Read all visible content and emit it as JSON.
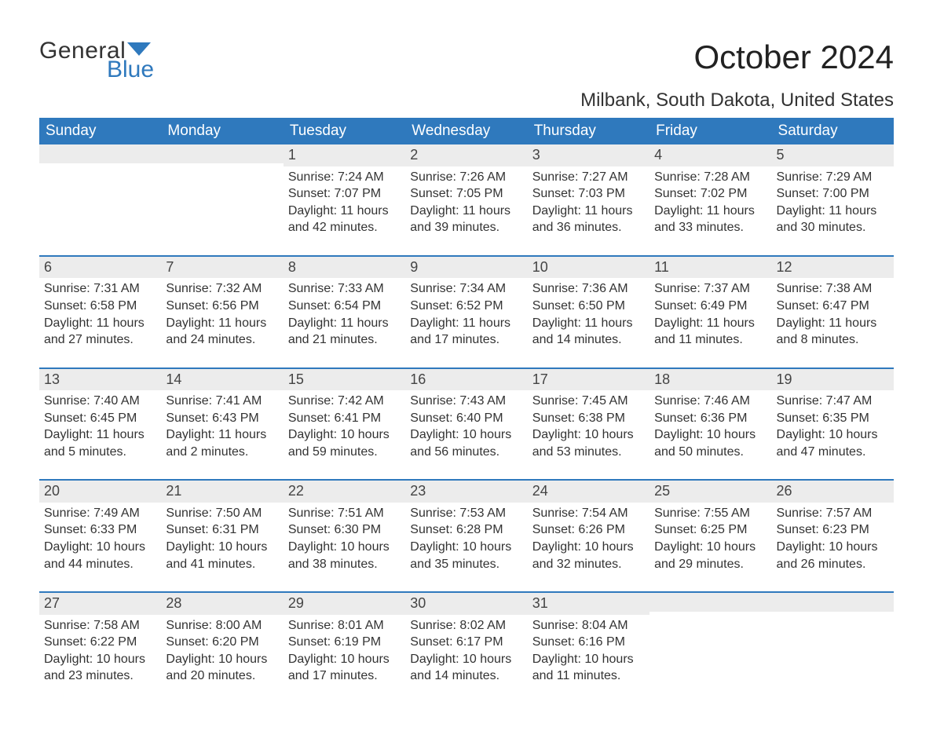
{
  "logo": {
    "word1": "General",
    "word2": "Blue"
  },
  "title": "October 2024",
  "location": "Milbank, South Dakota, United States",
  "theme": {
    "header_bg": "#2f79bd",
    "header_fg": "#ffffff",
    "row_sep": "#2f79bd",
    "daynum_bg": "#ececec",
    "text": "#333333",
    "logo_accent": "#2f79bd"
  },
  "weekdays": [
    "Sunday",
    "Monday",
    "Tuesday",
    "Wednesday",
    "Thursday",
    "Friday",
    "Saturday"
  ],
  "weeks": [
    [
      null,
      null,
      {
        "n": "1",
        "sunrise": "7:24 AM",
        "sunset": "7:07 PM",
        "daylight": "11 hours and 42 minutes."
      },
      {
        "n": "2",
        "sunrise": "7:26 AM",
        "sunset": "7:05 PM",
        "daylight": "11 hours and 39 minutes."
      },
      {
        "n": "3",
        "sunrise": "7:27 AM",
        "sunset": "7:03 PM",
        "daylight": "11 hours and 36 minutes."
      },
      {
        "n": "4",
        "sunrise": "7:28 AM",
        "sunset": "7:02 PM",
        "daylight": "11 hours and 33 minutes."
      },
      {
        "n": "5",
        "sunrise": "7:29 AM",
        "sunset": "7:00 PM",
        "daylight": "11 hours and 30 minutes."
      }
    ],
    [
      {
        "n": "6",
        "sunrise": "7:31 AM",
        "sunset": "6:58 PM",
        "daylight": "11 hours and 27 minutes."
      },
      {
        "n": "7",
        "sunrise": "7:32 AM",
        "sunset": "6:56 PM",
        "daylight": "11 hours and 24 minutes."
      },
      {
        "n": "8",
        "sunrise": "7:33 AM",
        "sunset": "6:54 PM",
        "daylight": "11 hours and 21 minutes."
      },
      {
        "n": "9",
        "sunrise": "7:34 AM",
        "sunset": "6:52 PM",
        "daylight": "11 hours and 17 minutes."
      },
      {
        "n": "10",
        "sunrise": "7:36 AM",
        "sunset": "6:50 PM",
        "daylight": "11 hours and 14 minutes."
      },
      {
        "n": "11",
        "sunrise": "7:37 AM",
        "sunset": "6:49 PM",
        "daylight": "11 hours and 11 minutes."
      },
      {
        "n": "12",
        "sunrise": "7:38 AM",
        "sunset": "6:47 PM",
        "daylight": "11 hours and 8 minutes."
      }
    ],
    [
      {
        "n": "13",
        "sunrise": "7:40 AM",
        "sunset": "6:45 PM",
        "daylight": "11 hours and 5 minutes."
      },
      {
        "n": "14",
        "sunrise": "7:41 AM",
        "sunset": "6:43 PM",
        "daylight": "11 hours and 2 minutes."
      },
      {
        "n": "15",
        "sunrise": "7:42 AM",
        "sunset": "6:41 PM",
        "daylight": "10 hours and 59 minutes."
      },
      {
        "n": "16",
        "sunrise": "7:43 AM",
        "sunset": "6:40 PM",
        "daylight": "10 hours and 56 minutes."
      },
      {
        "n": "17",
        "sunrise": "7:45 AM",
        "sunset": "6:38 PM",
        "daylight": "10 hours and 53 minutes."
      },
      {
        "n": "18",
        "sunrise": "7:46 AM",
        "sunset": "6:36 PM",
        "daylight": "10 hours and 50 minutes."
      },
      {
        "n": "19",
        "sunrise": "7:47 AM",
        "sunset": "6:35 PM",
        "daylight": "10 hours and 47 minutes."
      }
    ],
    [
      {
        "n": "20",
        "sunrise": "7:49 AM",
        "sunset": "6:33 PM",
        "daylight": "10 hours and 44 minutes."
      },
      {
        "n": "21",
        "sunrise": "7:50 AM",
        "sunset": "6:31 PM",
        "daylight": "10 hours and 41 minutes."
      },
      {
        "n": "22",
        "sunrise": "7:51 AM",
        "sunset": "6:30 PM",
        "daylight": "10 hours and 38 minutes."
      },
      {
        "n": "23",
        "sunrise": "7:53 AM",
        "sunset": "6:28 PM",
        "daylight": "10 hours and 35 minutes."
      },
      {
        "n": "24",
        "sunrise": "7:54 AM",
        "sunset": "6:26 PM",
        "daylight": "10 hours and 32 minutes."
      },
      {
        "n": "25",
        "sunrise": "7:55 AM",
        "sunset": "6:25 PM",
        "daylight": "10 hours and 29 minutes."
      },
      {
        "n": "26",
        "sunrise": "7:57 AM",
        "sunset": "6:23 PM",
        "daylight": "10 hours and 26 minutes."
      }
    ],
    [
      {
        "n": "27",
        "sunrise": "7:58 AM",
        "sunset": "6:22 PM",
        "daylight": "10 hours and 23 minutes."
      },
      {
        "n": "28",
        "sunrise": "8:00 AM",
        "sunset": "6:20 PM",
        "daylight": "10 hours and 20 minutes."
      },
      {
        "n": "29",
        "sunrise": "8:01 AM",
        "sunset": "6:19 PM",
        "daylight": "10 hours and 17 minutes."
      },
      {
        "n": "30",
        "sunrise": "8:02 AM",
        "sunset": "6:17 PM",
        "daylight": "10 hours and 14 minutes."
      },
      {
        "n": "31",
        "sunrise": "8:04 AM",
        "sunset": "6:16 PM",
        "daylight": "10 hours and 11 minutes."
      },
      null,
      null
    ]
  ],
  "labels": {
    "sunrise": "Sunrise: ",
    "sunset": "Sunset: ",
    "daylight": "Daylight: "
  }
}
